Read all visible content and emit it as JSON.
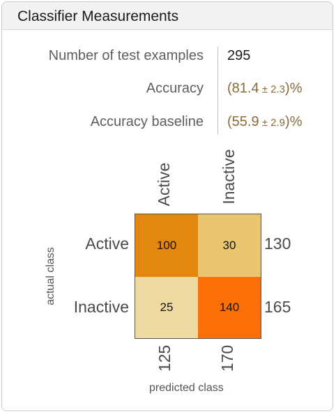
{
  "panel": {
    "title": "Classifier Measurements"
  },
  "metrics": [
    {
      "label": "Number of test examples",
      "value": "295"
    },
    {
      "label": "Accuracy",
      "value_open": "(",
      "value_main": "81.4",
      "value_err": " ± 2.3",
      "value_close": ")%"
    },
    {
      "label": "Accuracy baseline",
      "value_open": "(",
      "value_main": "55.9",
      "value_err": " ± 2.9",
      "value_close": ")%"
    }
  ],
  "confusion_matrix": {
    "column_labels": [
      "Active",
      "Inactive"
    ],
    "row_labels": [
      "Active",
      "Inactive"
    ],
    "cells": [
      [
        "100",
        "30"
      ],
      [
        "25",
        "140"
      ]
    ],
    "row_totals": [
      "130",
      "165"
    ],
    "column_totals": [
      "125",
      "170"
    ],
    "x_axis_title": "predicted class",
    "y_axis_title": "actual class",
    "colors": {
      "c00": "#e4870f",
      "c01": "#eac46f",
      "c10": "#eed9a1",
      "c11": "#fb7006"
    }
  }
}
